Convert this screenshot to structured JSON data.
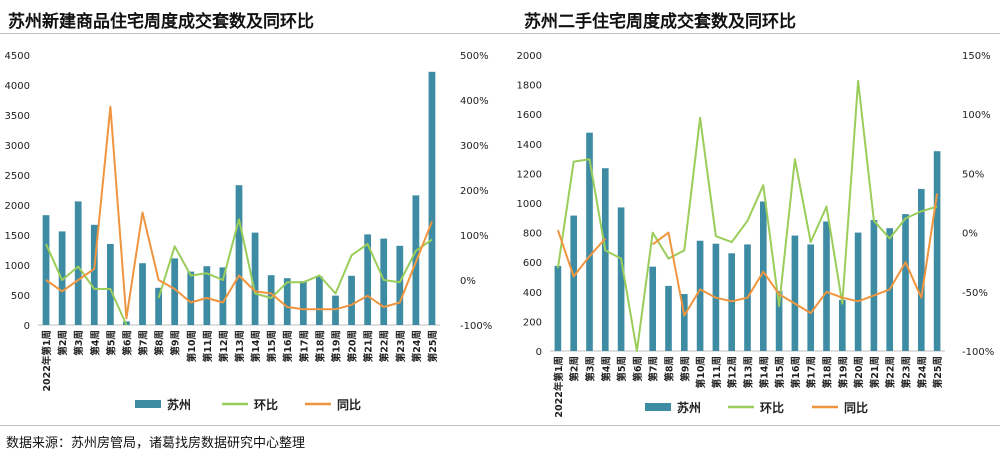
{
  "titles": {
    "left": "苏州新建商品住宅周度成交套数及同环比",
    "right": "苏州二手住宅周度成交套数及同环比"
  },
  "source": "数据来源：苏州房管局，诸葛找房数据研究中心整理",
  "colors": {
    "bar": "#3d8ca3",
    "mom": "#9acd5a",
    "yoy": "#f0953f",
    "axis": "#bfbfbf"
  },
  "chart_data": [
    {
      "type": "bar",
      "title": "苏州新建商品住宅周度成交套数及同环比",
      "categories": [
        "2022年第1周",
        "第2周",
        "第3周",
        "第4周",
        "第5周",
        "第6周",
        "第7周",
        "第8周",
        "第9周",
        "第10周",
        "第11周",
        "第12周",
        "第13周",
        "第14周",
        "第15周",
        "第16周",
        "第17周",
        "第18周",
        "第19周",
        "第20周",
        "第21周",
        "第22周",
        "第23周",
        "第24周",
        "第25周"
      ],
      "y_left": {
        "lim": [
          0,
          4500
        ],
        "ticks": [
          0,
          500,
          1000,
          1500,
          2000,
          2500,
          3000,
          3500,
          4000,
          4500
        ]
      },
      "y_right": {
        "lim": [
          -100,
          500
        ],
        "ticks": [
          -100,
          0,
          100,
          200,
          300,
          400,
          500
        ],
        "tick_labels": [
          "-100%",
          "0%",
          "100%",
          "200%",
          "300%",
          "400%",
          "500%"
        ]
      },
      "series": [
        {
          "name": "苏州",
          "kind": "bar",
          "axis": "left",
          "values": [
            1830,
            1560,
            2060,
            1670,
            1350,
            60,
            1030,
            620,
            1110,
            890,
            980,
            960,
            2330,
            1540,
            830,
            780,
            730,
            810,
            490,
            820,
            1510,
            1440,
            1320,
            2160,
            4220
          ]
        },
        {
          "name": "环比",
          "kind": "line",
          "axis": "right",
          "values": [
            80,
            0,
            30,
            -20,
            -20,
            -100,
            null,
            -40,
            75,
            10,
            15,
            0,
            135,
            -30,
            -40,
            -5,
            -5,
            10,
            -30,
            55,
            80,
            0,
            -5,
            65,
            90
          ]
        },
        {
          "name": "同比",
          "kind": "line",
          "axis": "right",
          "values": [
            0,
            -25,
            0,
            25,
            385,
            -85,
            150,
            0,
            -20,
            -50,
            -40,
            -50,
            10,
            -25,
            -30,
            -60,
            -65,
            -65,
            -65,
            -55,
            -35,
            -60,
            -50,
            40,
            130
          ]
        }
      ],
      "legend": [
        "苏州",
        "环比",
        "同比"
      ],
      "legend_position": "bottom"
    },
    {
      "type": "bar",
      "title": "苏州二手住宅周度成交套数及同环比",
      "categories": [
        "2022年第1周",
        "第2周",
        "第3周",
        "第4周",
        "第5周",
        "第6周",
        "第7周",
        "第8周",
        "第9周",
        "第10周",
        "第11周",
        "第12周",
        "第13周",
        "第14周",
        "第15周",
        "第16周",
        "第17周",
        "第18周",
        "第19周",
        "第20周",
        "第21周",
        "第22周",
        "第23周",
        "第24周",
        "第25周"
      ],
      "y_left": {
        "lim": [
          0,
          2000
        ],
        "ticks": [
          0,
          200,
          400,
          600,
          800,
          1000,
          1200,
          1400,
          1600,
          1800,
          2000
        ]
      },
      "y_right": {
        "lim": [
          -100,
          150
        ],
        "ticks": [
          -100,
          -50,
          0,
          50,
          100,
          150
        ],
        "tick_labels": [
          "-100%",
          "-50%",
          "0%",
          "50%",
          "100%",
          "150%"
        ]
      },
      "series": [
        {
          "name": "苏州",
          "kind": "bar",
          "axis": "left",
          "values": [
            575,
            915,
            1475,
            1235,
            970,
            0,
            570,
            440,
            385,
            745,
            725,
            660,
            720,
            1010,
            405,
            780,
            720,
            875,
            345,
            800,
            885,
            830,
            925,
            1095,
            1350
          ]
        },
        {
          "name": "环比",
          "kind": "line",
          "axis": "right",
          "values": [
            -30,
            60,
            62,
            -15,
            -22,
            -100,
            0,
            -22,
            -15,
            97,
            -3,
            -8,
            10,
            40,
            -62,
            62,
            -8,
            22,
            -60,
            128,
            10,
            -5,
            12,
            18,
            22
          ]
        },
        {
          "name": "同比",
          "kind": "line",
          "axis": "right",
          "values": [
            2,
            -37,
            -20,
            -5,
            null,
            null,
            -10,
            0,
            -70,
            -48,
            -55,
            -58,
            -55,
            -33,
            -52,
            -60,
            -68,
            -50,
            -55,
            -58,
            -53,
            -48,
            -25,
            -55,
            33
          ]
        }
      ],
      "legend": [
        "苏州",
        "环比",
        "同比"
      ],
      "legend_position": "bottom"
    }
  ]
}
